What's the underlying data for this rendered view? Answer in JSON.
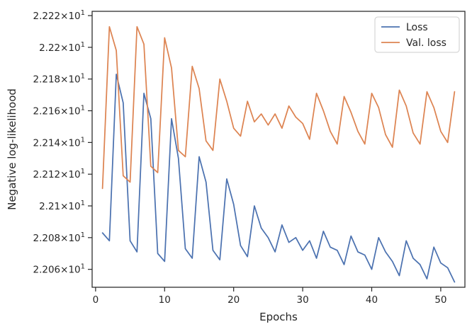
{
  "chart_data": {
    "type": "line",
    "xlabel": "Epochs",
    "ylabel": "Negative log-likelihood",
    "xlim": [
      -0.5,
      53.5
    ],
    "ylim": [
      22.0487,
      22.2227
    ],
    "x_ticks": [
      0,
      10,
      20,
      30,
      40,
      50
    ],
    "y_ticks": [
      {
        "value": 22.06,
        "mantissa": "2.206",
        "exp": "1"
      },
      {
        "value": 22.08,
        "mantissa": "2.208",
        "exp": "1"
      },
      {
        "value": 22.1,
        "mantissa": "2.21",
        "exp": "1"
      },
      {
        "value": 22.12,
        "mantissa": "2.212",
        "exp": "1"
      },
      {
        "value": 22.14,
        "mantissa": "2.214",
        "exp": "1"
      },
      {
        "value": 22.16,
        "mantissa": "2.216",
        "exp": "1"
      },
      {
        "value": 22.18,
        "mantissa": "2.218",
        "exp": "1"
      },
      {
        "value": 22.2,
        "mantissa": "2.22",
        "exp": "1"
      },
      {
        "value": 22.22,
        "mantissa": "2.222",
        "exp": "1"
      }
    ],
    "times_symbol": "×",
    "base": "10",
    "grid": false,
    "legend_position": "top-right",
    "x": [
      1,
      2,
      3,
      4,
      5,
      6,
      7,
      8,
      9,
      10,
      11,
      12,
      13,
      14,
      15,
      16,
      17,
      18,
      19,
      20,
      21,
      22,
      23,
      24,
      25,
      26,
      27,
      28,
      29,
      30,
      31,
      32,
      33,
      34,
      35,
      36,
      37,
      38,
      39,
      40,
      41,
      42,
      43,
      44,
      45,
      46,
      47,
      48,
      49,
      50,
      51,
      52
    ],
    "series": [
      {
        "name": "Loss",
        "color": "#4c72b0",
        "values": [
          22.083,
          22.078,
          22.183,
          22.165,
          22.078,
          22.071,
          22.171,
          22.155,
          22.07,
          22.065,
          22.155,
          22.13,
          22.073,
          22.067,
          22.131,
          22.115,
          22.072,
          22.066,
          22.117,
          22.101,
          22.075,
          22.068,
          22.1,
          22.086,
          22.08,
          22.071,
          22.088,
          22.077,
          22.08,
          22.072,
          22.078,
          22.067,
          22.084,
          22.074,
          22.072,
          22.063,
          22.081,
          22.071,
          22.069,
          22.06,
          22.08,
          22.071,
          22.065,
          22.056,
          22.078,
          22.067,
          22.063,
          22.054,
          22.074,
          22.064,
          22.061,
          22.052
        ]
      },
      {
        "name": "Val. loss",
        "color": "#dd8452",
        "values": [
          22.111,
          22.213,
          22.198,
          22.119,
          22.115,
          22.213,
          22.202,
          22.125,
          22.121,
          22.206,
          22.187,
          22.135,
          22.131,
          22.188,
          22.174,
          22.141,
          22.135,
          22.18,
          22.166,
          22.149,
          22.144,
          22.166,
          22.153,
          22.158,
          22.151,
          22.158,
          22.149,
          22.163,
          22.156,
          22.152,
          22.142,
          22.171,
          22.16,
          22.147,
          22.139,
          22.169,
          22.159,
          22.147,
          22.139,
          22.171,
          22.162,
          22.145,
          22.137,
          22.173,
          22.163,
          22.146,
          22.139,
          22.172,
          22.162,
          22.147,
          22.14,
          22.172
        ]
      }
    ]
  }
}
